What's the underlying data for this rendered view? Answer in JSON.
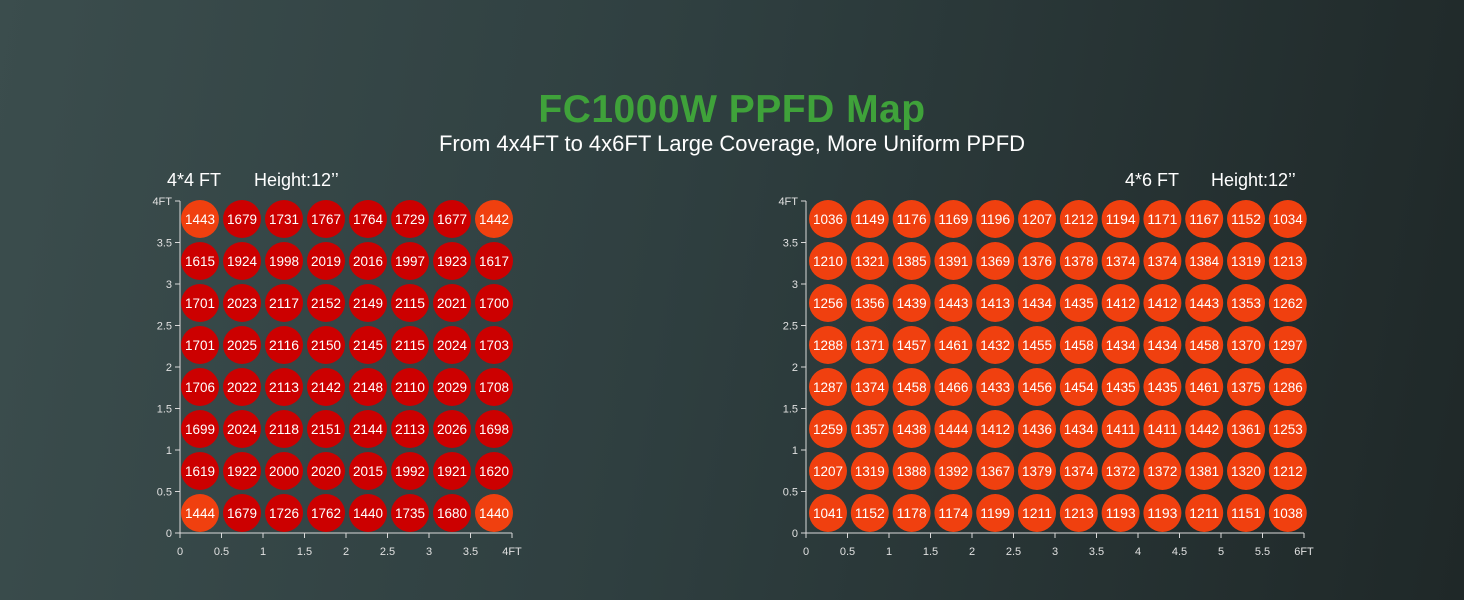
{
  "title": "FC1000W PPFD Map",
  "subtitle": "From 4x4FT to 4x6FT Large Coverage, More Uniform PPFD",
  "chart_data": [
    {
      "type": "heatmap",
      "size_label": "4*4 FT",
      "height_label": "Height:12’’",
      "x_ticks": [
        "0",
        "0.5",
        "1",
        "1.5",
        "2",
        "2.5",
        "3",
        "3.5",
        "4FT"
      ],
      "y_ticks": [
        "0",
        "0.5",
        "1",
        "1.5",
        "2",
        "2.5",
        "3",
        "3.5",
        "4FT"
      ],
      "xlim": [
        0,
        4
      ],
      "ylim": [
        0,
        4
      ],
      "corner_color": "#f0400f",
      "cell_color": "#cc0000",
      "rows": [
        [
          1443,
          1679,
          1731,
          1767,
          1764,
          1729,
          1677,
          1442
        ],
        [
          1615,
          1924,
          1998,
          2019,
          2016,
          1997,
          1923,
          1617
        ],
        [
          1701,
          2023,
          2117,
          2152,
          2149,
          2115,
          2021,
          1700
        ],
        [
          1701,
          2025,
          2116,
          2150,
          2145,
          2115,
          2024,
          1703
        ],
        [
          1706,
          2022,
          2113,
          2142,
          2148,
          2110,
          2029,
          1708
        ],
        [
          1699,
          2024,
          2118,
          2151,
          2144,
          2113,
          2026,
          1698
        ],
        [
          1619,
          1922,
          2000,
          2020,
          2015,
          1992,
          1921,
          1620
        ],
        [
          1444,
          1679,
          1726,
          1762,
          1440,
          1735,
          1680,
          1440
        ]
      ]
    },
    {
      "type": "heatmap",
      "size_label": "4*6 FT",
      "height_label": "Height:12’’",
      "x_ticks": [
        "0",
        "0.5",
        "1",
        "1.5",
        "2",
        "2.5",
        "3",
        "3.5",
        "4",
        "4.5",
        "5",
        "5.5",
        "6FT"
      ],
      "y_ticks": [
        "0",
        "0.5",
        "1",
        "1.5",
        "2",
        "2.5",
        "3",
        "3.5",
        "4FT"
      ],
      "xlim": [
        0,
        6
      ],
      "ylim": [
        0,
        4
      ],
      "cell_color": "#f0400f",
      "rows": [
        [
          1036,
          1149,
          1176,
          1169,
          1196,
          1207,
          1212,
          1194,
          1171,
          1167,
          1152,
          1034
        ],
        [
          1210,
          1321,
          1385,
          1391,
          1369,
          1376,
          1378,
          1374,
          1374,
          1384,
          1319,
          1213
        ],
        [
          1256,
          1356,
          1439,
          1443,
          1413,
          1434,
          1435,
          1412,
          1412,
          1443,
          1353,
          1262
        ],
        [
          1288,
          1371,
          1457,
          1461,
          1432,
          1455,
          1458,
          1434,
          1434,
          1458,
          1370,
          1297
        ],
        [
          1287,
          1374,
          1458,
          1466,
          1433,
          1456,
          1454,
          1435,
          1435,
          1461,
          1375,
          1286
        ],
        [
          1259,
          1357,
          1438,
          1444,
          1412,
          1436,
          1434,
          1411,
          1411,
          1442,
          1361,
          1253
        ],
        [
          1207,
          1319,
          1388,
          1392,
          1367,
          1379,
          1374,
          1372,
          1372,
          1381,
          1320,
          1212
        ],
        [
          1041,
          1152,
          1178,
          1174,
          1199,
          1211,
          1213,
          1193,
          1193,
          1211,
          1151,
          1038
        ]
      ]
    }
  ]
}
